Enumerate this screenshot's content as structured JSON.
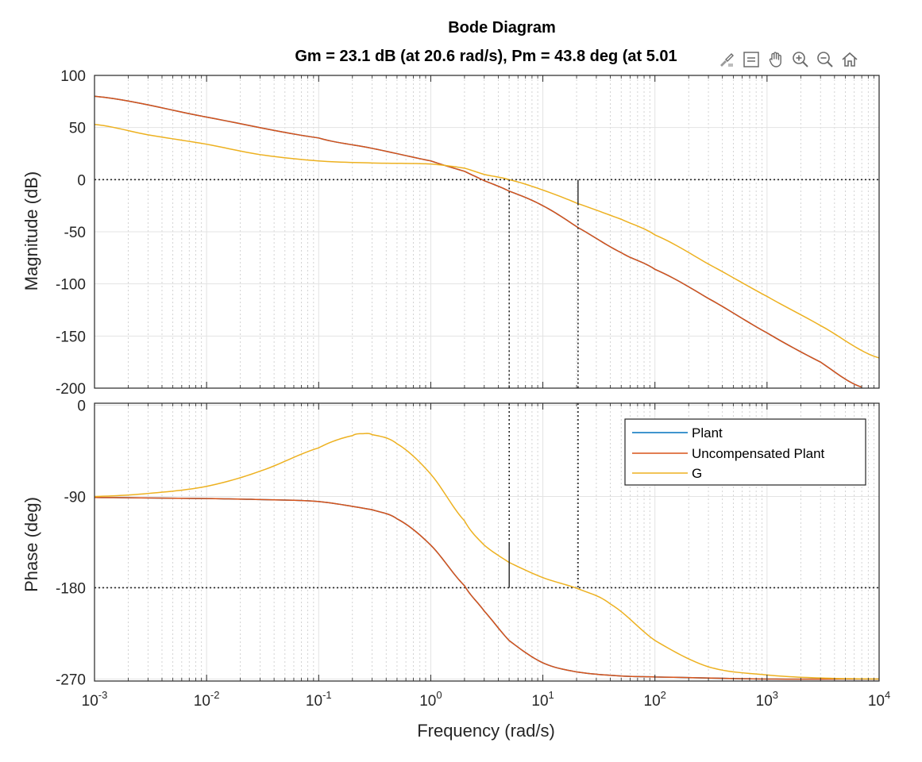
{
  "chart_data": {
    "type": "line",
    "title": "Bode Diagram",
    "subtitle": "Gm = 23.1 dB (at 20.6 rad/s),  Pm = 43.8 deg (at 5.01",
    "xlabel": "Frequency  (rad/s)",
    "xscale": "log",
    "xlim": [
      0.001,
      10000
    ],
    "x_ticks": [
      {
        "base": "10",
        "exp": "-3",
        "value": 0.001
      },
      {
        "base": "10",
        "exp": "-2",
        "value": 0.01
      },
      {
        "base": "10",
        "exp": "-1",
        "value": 0.1
      },
      {
        "base": "10",
        "exp": "0",
        "value": 1
      },
      {
        "base": "10",
        "exp": "1",
        "value": 10
      },
      {
        "base": "10",
        "exp": "2",
        "value": 100
      },
      {
        "base": "10",
        "exp": "3",
        "value": 1000
      },
      {
        "base": "10",
        "exp": "4",
        "value": 10000
      }
    ],
    "grid": true,
    "legend_position": "top-right",
    "legend": [
      "Plant",
      "Uncompensated Plant",
      "G"
    ],
    "margins": {
      "gain_margin_db": 23.1,
      "gain_crossover_freq": 20.6,
      "phase_margin_deg": 43.8,
      "phase_crossover_freq": 5.01
    },
    "magnitude": {
      "ylabel": "Magnitude (dB)",
      "ylim": [
        -200,
        100
      ],
      "yticks": [
        100,
        50,
        0,
        -50,
        -100,
        -150,
        -200
      ],
      "series": [
        {
          "name": "Plant",
          "color": "#0072BD",
          "x": [
            0.001,
            0.01,
            0.1,
            0.3,
            1,
            2,
            3,
            5,
            10,
            20.6,
            50,
            100,
            300,
            1000,
            3000,
            7000
          ],
          "y": [
            80,
            60,
            40,
            30,
            18,
            8,
            -1,
            -11,
            -25,
            -46,
            -70,
            -86,
            -114,
            -147,
            -175,
            -199
          ]
        },
        {
          "name": "Uncompensated Plant",
          "color": "#D95319",
          "x": [
            0.001,
            0.01,
            0.1,
            0.3,
            1,
            2,
            3,
            5,
            10,
            20.6,
            50,
            100,
            300,
            1000,
            3000,
            7000
          ],
          "y": [
            80,
            60,
            40,
            30,
            18,
            8,
            -1,
            -11,
            -25,
            -46,
            -70,
            -86,
            -114,
            -147,
            -175,
            -199
          ]
        },
        {
          "name": "G",
          "color": "#EDB120",
          "x": [
            0.001,
            0.003,
            0.01,
            0.03,
            0.1,
            0.3,
            1,
            2,
            3,
            5,
            10,
            20.6,
            50,
            100,
            300,
            1000,
            3000,
            10000
          ],
          "y": [
            53,
            43,
            34,
            24,
            18,
            16,
            15,
            11,
            5,
            0,
            -10,
            -23,
            -38,
            -53,
            -81,
            -112,
            -140,
            -171
          ]
        }
      ]
    },
    "phase": {
      "ylabel": "Phase (deg)",
      "ylim": [
        -272,
        2
      ],
      "yticks": [
        0,
        -90,
        -180,
        -270
      ],
      "series": [
        {
          "name": "Plant",
          "color": "#0072BD",
          "x": [
            0.001,
            0.01,
            0.03,
            0.1,
            0.3,
            0.5,
            1,
            2,
            3,
            5,
            10,
            20,
            50,
            100,
            1000,
            10000
          ],
          "y": [
            -91,
            -92,
            -93,
            -95,
            -103,
            -112,
            -138,
            -178,
            -203,
            -232,
            -254,
            -263,
            -267,
            -268,
            -270,
            -270
          ]
        },
        {
          "name": "Uncompensated Plant",
          "color": "#D95319",
          "x": [
            0.001,
            0.01,
            0.03,
            0.1,
            0.3,
            0.5,
            1,
            2,
            3,
            5,
            10,
            20,
            50,
            100,
            1000,
            10000
          ],
          "y": [
            -91,
            -92,
            -93,
            -95,
            -103,
            -112,
            -138,
            -178,
            -203,
            -232,
            -254,
            -263,
            -267,
            -268,
            -270,
            -270
          ]
        },
        {
          "name": "G",
          "color": "#EDB120",
          "x": [
            0.001,
            0.003,
            0.01,
            0.03,
            0.1,
            0.2,
            0.25,
            0.3,
            0.5,
            1,
            2,
            3,
            5,
            10,
            20.6,
            40,
            100,
            300,
            1000,
            3000,
            10000
          ],
          "y": [
            -90,
            -87,
            -80,
            -65,
            -42,
            -30,
            -28,
            -29,
            -38,
            -68,
            -114,
            -138,
            -155,
            -170,
            -181,
            -196,
            -232,
            -258,
            -266,
            -269,
            -270
          ]
        }
      ]
    }
  },
  "toolbar": {
    "icons": [
      "brush-icon",
      "datatip-icon",
      "pan-hand-icon",
      "zoom-in-icon",
      "zoom-out-icon",
      "home-icon"
    ]
  }
}
